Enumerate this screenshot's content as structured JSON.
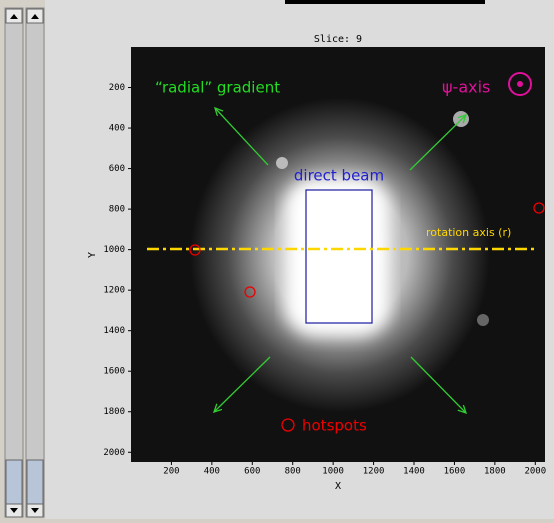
{
  "chart_data": {
    "type": "image",
    "title": "Slice:  9",
    "xlabel": "X",
    "ylabel": "Y",
    "xlim": [
      0,
      2048
    ],
    "ylim": [
      0,
      2048
    ],
    "xticks": [
      200,
      400,
      600,
      800,
      1000,
      1200,
      1400,
      1600,
      1800,
      2000
    ],
    "yticks": [
      200,
      400,
      600,
      800,
      1000,
      1200,
      1400,
      1600,
      1800,
      2000
    ],
    "annotations": [
      "“radial” gradient",
      "ψ-axis",
      "direct beam",
      "rotation axis (r)",
      "hotspots"
    ]
  }
}
